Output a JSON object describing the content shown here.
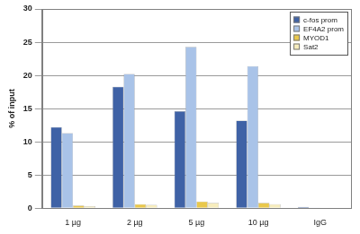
{
  "chart_data": {
    "type": "bar",
    "y_label": "% of input",
    "categories": [
      "1 µg",
      "2 µg",
      "5 µg",
      "10 µg",
      "IgG"
    ],
    "series": [
      {
        "name": "c-fos prom",
        "color": "#3f62a6",
        "values": [
          12.2,
          18.3,
          14.6,
          13.2,
          0.2
        ]
      },
      {
        "name": "EF4A2 prom",
        "color": "#a9c3e8",
        "values": [
          11.3,
          20.2,
          24.3,
          21.4,
          0.1
        ]
      },
      {
        "name": "MYOD1",
        "color": "#e9c84c",
        "values": [
          0.4,
          0.6,
          1.0,
          0.8,
          0.05
        ]
      },
      {
        "name": "Sat2",
        "color": "#f7edbd",
        "values": [
          0.3,
          0.5,
          0.8,
          0.6,
          0.05
        ]
      }
    ],
    "ylim": [
      0,
      30
    ],
    "yticks": [
      0,
      5,
      10,
      15,
      20,
      25,
      30
    ],
    "grid": true,
    "legend": "upper right"
  }
}
